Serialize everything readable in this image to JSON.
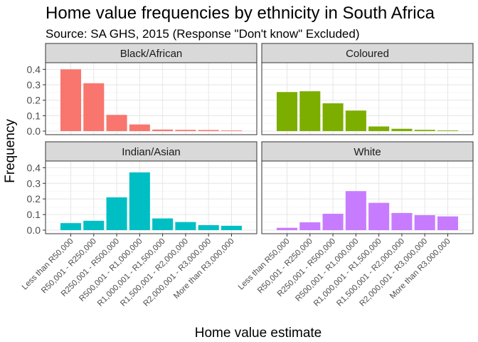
{
  "title": "Home value frequencies by ethnicity in South Africa",
  "subtitle": "Source: SA GHS, 2015 (Response \"Don't know\" Excluded)",
  "chart_data": {
    "type": "bar",
    "xlabel": "Home value estimate",
    "ylabel": "Frequency",
    "ylim": [
      0,
      0.42
    ],
    "yticks": [
      "0.0",
      "0.1",
      "0.2",
      "0.3",
      "0.4"
    ],
    "grid": true,
    "facet_layout": "2x2",
    "categories": [
      "Less than R50,000",
      "R50,001 - R250,000",
      "R250,001 - R500,000",
      "R500,001 - R1,000,000",
      "R1,000,001 - R1,500,000",
      "R1,500,001 - R2,000,000",
      "R2,000,001 - R3,000,000",
      "More than R3,000,000"
    ],
    "series": [
      {
        "name": "Black/African",
        "color": "#F8766D",
        "values": [
          0.4,
          0.31,
          0.105,
          0.043,
          0.01,
          0.008,
          0.007,
          0.004
        ]
      },
      {
        "name": "Coloured",
        "color": "#7CAE00",
        "values": [
          0.253,
          0.258,
          0.18,
          0.133,
          0.03,
          0.015,
          0.008,
          0.004
        ]
      },
      {
        "name": "Indian/Asian",
        "color": "#00BFC4",
        "values": [
          0.045,
          0.06,
          0.21,
          0.37,
          0.075,
          0.052,
          0.032,
          0.028
        ]
      },
      {
        "name": "White",
        "color": "#C77CFF",
        "values": [
          0.015,
          0.05,
          0.105,
          0.25,
          0.175,
          0.11,
          0.096,
          0.088
        ]
      }
    ]
  }
}
